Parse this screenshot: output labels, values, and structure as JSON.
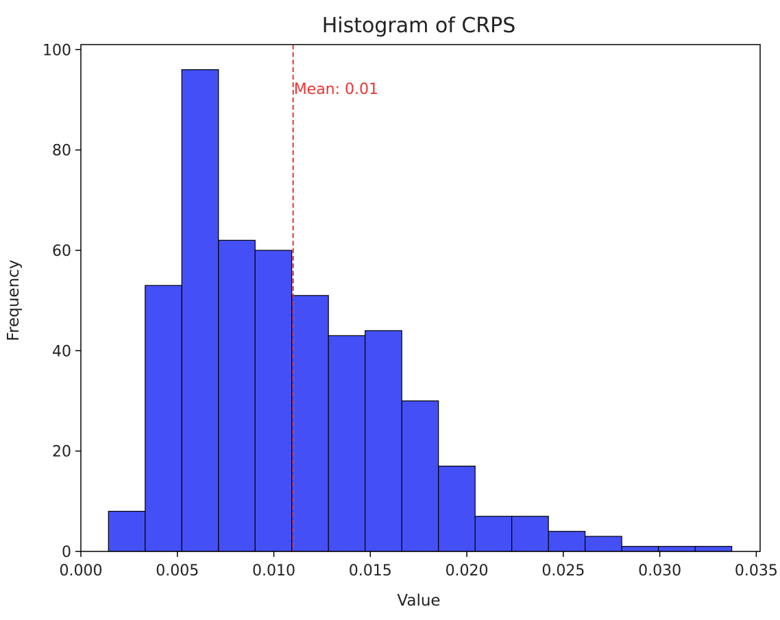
{
  "chart_data": {
    "type": "bar",
    "title": "Histogram of CRPS",
    "xlabel": "Value",
    "ylabel": "Frequency",
    "xlim": [
      0.0,
      0.0352
    ],
    "ylim": [
      0,
      101
    ],
    "x_ticks": [
      "0.000",
      "0.005",
      "0.010",
      "0.015",
      "0.020",
      "0.025",
      "0.030",
      "0.035"
    ],
    "y_ticks": [
      "0",
      "20",
      "40",
      "60",
      "80",
      "100"
    ],
    "bins": [
      {
        "start": 0.00143,
        "end": 0.00333,
        "value": 8
      },
      {
        "start": 0.00333,
        "end": 0.00523,
        "value": 53
      },
      {
        "start": 0.00523,
        "end": 0.00713,
        "value": 96
      },
      {
        "start": 0.00713,
        "end": 0.00903,
        "value": 62
      },
      {
        "start": 0.00903,
        "end": 0.01093,
        "value": 60
      },
      {
        "start": 0.01093,
        "end": 0.01283,
        "value": 51
      },
      {
        "start": 0.01283,
        "end": 0.01473,
        "value": 43
      },
      {
        "start": 0.01473,
        "end": 0.01663,
        "value": 44
      },
      {
        "start": 0.01663,
        "end": 0.01853,
        "value": 30
      },
      {
        "start": 0.01853,
        "end": 0.02043,
        "value": 17
      },
      {
        "start": 0.02043,
        "end": 0.02233,
        "value": 7
      },
      {
        "start": 0.02233,
        "end": 0.02423,
        "value": 7
      },
      {
        "start": 0.02423,
        "end": 0.02613,
        "value": 4
      },
      {
        "start": 0.02613,
        "end": 0.02803,
        "value": 3
      },
      {
        "start": 0.02803,
        "end": 0.02993,
        "value": 1
      },
      {
        "start": 0.02993,
        "end": 0.03183,
        "value": 1
      },
      {
        "start": 0.03183,
        "end": 0.03373,
        "value": 1
      }
    ],
    "mean": {
      "value": 0.011,
      "label": "Mean: 0.01"
    },
    "grid": false,
    "colors": {
      "bar_fill": "#4450f5",
      "bar_edge": "#000000",
      "mean_line": "#ee3333"
    }
  }
}
